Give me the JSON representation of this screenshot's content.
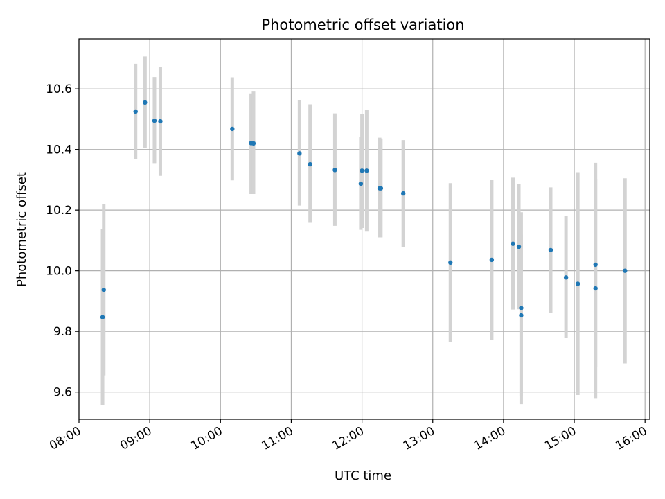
{
  "chart_data": {
    "type": "scatter",
    "title": "Photometric offset variation",
    "xlabel": "UTC time",
    "ylabel": "Photometric offset",
    "xlim": [
      "08:00",
      "16:04"
    ],
    "ylim": [
      9.51,
      10.765
    ],
    "grid": true,
    "x_ticks": [
      "08:00",
      "09:00",
      "10:00",
      "11:00",
      "12:00",
      "13:00",
      "14:00",
      "15:00",
      "16:00"
    ],
    "y_ticks": [
      9.6,
      9.8,
      10.0,
      10.2,
      10.4,
      10.6
    ],
    "y_tick_labels": [
      "9.6",
      "9.8",
      "10.0",
      "10.2",
      "10.4",
      "10.6"
    ],
    "colors": {
      "points": "#1f77b4",
      "error_bars": "#d3d3d3",
      "grid": "#b0b0b0"
    },
    "points": [
      {
        "x": "08:20",
        "y": 9.847,
        "lo": 9.558,
        "hi": 10.137
      },
      {
        "x": "08:21",
        "y": 9.937,
        "lo": 9.655,
        "hi": 10.221
      },
      {
        "x": "08:48",
        "y": 10.525,
        "lo": 10.369,
        "hi": 10.683
      },
      {
        "x": "08:56",
        "y": 10.555,
        "lo": 10.405,
        "hi": 10.707
      },
      {
        "x": "09:04",
        "y": 10.495,
        "lo": 10.355,
        "hi": 10.639
      },
      {
        "x": "09:09",
        "y": 10.493,
        "lo": 10.313,
        "hi": 10.673
      },
      {
        "x": "10:10",
        "y": 10.468,
        "lo": 10.298,
        "hi": 10.638
      },
      {
        "x": "10:26",
        "y": 10.421,
        "lo": 10.253,
        "hi": 10.585
      },
      {
        "x": "10:28",
        "y": 10.42,
        "lo": 10.253,
        "hi": 10.591
      },
      {
        "x": "11:07",
        "y": 10.387,
        "lo": 10.215,
        "hi": 10.562
      },
      {
        "x": "11:16",
        "y": 10.351,
        "lo": 10.158,
        "hi": 10.549
      },
      {
        "x": "11:37",
        "y": 10.332,
        "lo": 10.148,
        "hi": 10.519
      },
      {
        "x": "11:59",
        "y": 10.287,
        "lo": 10.135,
        "hi": 10.441
      },
      {
        "x": "12:00",
        "y": 10.33,
        "lo": 10.141,
        "hi": 10.517
      },
      {
        "x": "12:04",
        "y": 10.33,
        "lo": 10.129,
        "hi": 10.531
      },
      {
        "x": "12:15",
        "y": 10.272,
        "lo": 10.11,
        "hi": 10.439
      },
      {
        "x": "12:16",
        "y": 10.272,
        "lo": 10.11,
        "hi": 10.436
      },
      {
        "x": "12:35",
        "y": 10.255,
        "lo": 10.078,
        "hi": 10.431
      },
      {
        "x": "13:15",
        "y": 10.027,
        "lo": 9.764,
        "hi": 10.289
      },
      {
        "x": "13:50",
        "y": 10.036,
        "lo": 9.773,
        "hi": 10.301
      },
      {
        "x": "14:08",
        "y": 10.089,
        "lo": 9.872,
        "hi": 10.307
      },
      {
        "x": "14:13",
        "y": 10.079,
        "lo": 9.873,
        "hi": 10.285
      },
      {
        "x": "14:15",
        "y": 9.877,
        "lo": 9.56,
        "hi": 10.193
      },
      {
        "x": "14:15",
        "y": 9.853,
        "lo": 9.587,
        "hi": 10.119
      },
      {
        "x": "14:40",
        "y": 10.068,
        "lo": 9.862,
        "hi": 10.275
      },
      {
        "x": "14:53",
        "y": 9.978,
        "lo": 9.778,
        "hi": 10.182
      },
      {
        "x": "15:03",
        "y": 9.957,
        "lo": 9.59,
        "hi": 10.325
      },
      {
        "x": "15:18",
        "y": 10.02,
        "lo": 9.684,
        "hi": 10.356
      },
      {
        "x": "15:18",
        "y": 9.942,
        "lo": 9.58,
        "hi": 10.303
      },
      {
        "x": "15:43",
        "y": 10.0,
        "lo": 9.694,
        "hi": 10.305
      }
    ]
  }
}
